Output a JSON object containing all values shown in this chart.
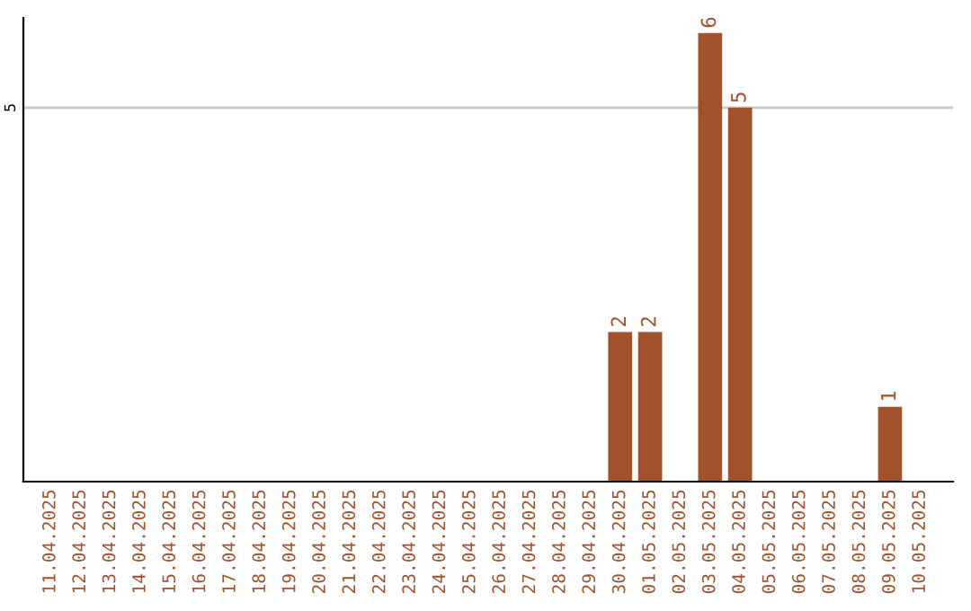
{
  "chart_data": {
    "type": "bar",
    "categories": [
      "11.04.2025",
      "12.04.2025",
      "13.04.2025",
      "14.04.2025",
      "15.04.2025",
      "16.04.2025",
      "17.04.2025",
      "18.04.2025",
      "19.04.2025",
      "20.04.2025",
      "21.04.2025",
      "22.04.2025",
      "23.04.2025",
      "24.04.2025",
      "25.04.2025",
      "26.04.2025",
      "27.04.2025",
      "28.04.2025",
      "29.04.2025",
      "30.04.2025",
      "01.05.2025",
      "02.05.2025",
      "03.05.2025",
      "04.05.2025",
      "05.05.2025",
      "06.05.2025",
      "07.05.2025",
      "08.05.2025",
      "09.05.2025",
      "10.05.2025"
    ],
    "values": [
      null,
      null,
      null,
      null,
      null,
      null,
      null,
      null,
      null,
      null,
      null,
      null,
      null,
      null,
      null,
      null,
      null,
      null,
      null,
      2,
      2,
      null,
      6,
      5,
      null,
      null,
      null,
      null,
      1,
      null
    ],
    "data_labels": true,
    "color": "#a0522d",
    "ylim": [
      0,
      6.2
    ],
    "yticks": [
      5
    ],
    "grid": "y"
  }
}
